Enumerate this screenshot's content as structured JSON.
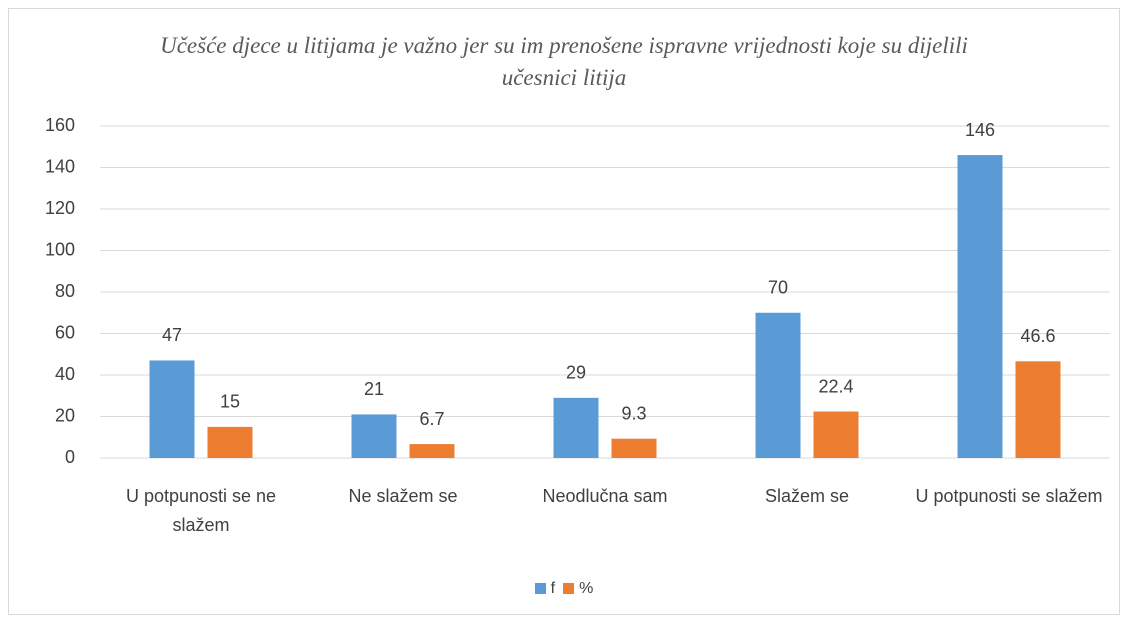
{
  "chart_data": {
    "type": "bar",
    "title": "Učešće djece u litijama je važno jer su im prenošene ispravne vrijednosti koje su dijelili učesnici litija",
    "categories": [
      "U potpunosti se ne slažem",
      "Ne slažem se",
      "Neodlučna sam",
      "Slažem se",
      "U potpunosti se slažem"
    ],
    "series": [
      {
        "name": "f",
        "color": "#5b9bd5",
        "values": [
          47,
          21,
          29,
          70,
          146
        ]
      },
      {
        "name": "%",
        "color": "#ed7d31",
        "values": [
          15,
          6.7,
          9.3,
          22.4,
          46.6
        ]
      }
    ],
    "ylim": [
      0,
      160
    ],
    "yticks": [
      0,
      20,
      40,
      60,
      80,
      100,
      120,
      140,
      160
    ],
    "grid": true,
    "legend": "bottom"
  }
}
